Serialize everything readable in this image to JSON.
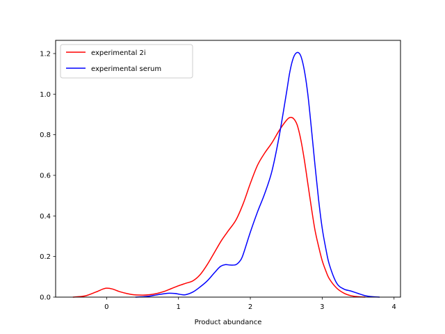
{
  "chart_data": {
    "type": "line",
    "xlabel": "Product abundance",
    "ylabel": "",
    "xlim": [
      -0.71,
      4.09
    ],
    "ylim": [
      0.0,
      1.265
    ],
    "x_ticks": [
      0,
      1,
      2,
      3,
      4
    ],
    "y_ticks": [
      0.0,
      0.2,
      0.4,
      0.6,
      0.8,
      1.0,
      1.2
    ],
    "x_tick_labels": [
      "0",
      "1",
      "2",
      "3",
      "4"
    ],
    "y_tick_labels": [
      "0.0",
      "0.2",
      "0.4",
      "0.6",
      "0.8",
      "1.0",
      "1.2"
    ],
    "grid": false,
    "legend_position": "top-left",
    "series": [
      {
        "name": "experimental 2i",
        "color": "#ff0000",
        "points": [
          [
            -0.47,
            0.0
          ],
          [
            -0.3,
            0.006
          ],
          [
            -0.15,
            0.025
          ],
          [
            -0.05,
            0.04
          ],
          [
            0.0,
            0.044
          ],
          [
            0.08,
            0.04
          ],
          [
            0.2,
            0.025
          ],
          [
            0.35,
            0.013
          ],
          [
            0.5,
            0.01
          ],
          [
            0.6,
            0.012
          ],
          [
            0.7,
            0.018
          ],
          [
            0.8,
            0.028
          ],
          [
            0.9,
            0.042
          ],
          [
            1.0,
            0.056
          ],
          [
            1.1,
            0.068
          ],
          [
            1.2,
            0.08
          ],
          [
            1.3,
            0.11
          ],
          [
            1.4,
            0.16
          ],
          [
            1.5,
            0.22
          ],
          [
            1.6,
            0.28
          ],
          [
            1.7,
            0.33
          ],
          [
            1.8,
            0.38
          ],
          [
            1.9,
            0.46
          ],
          [
            2.0,
            0.56
          ],
          [
            2.1,
            0.65
          ],
          [
            2.2,
            0.71
          ],
          [
            2.3,
            0.76
          ],
          [
            2.4,
            0.82
          ],
          [
            2.5,
            0.87
          ],
          [
            2.55,
            0.885
          ],
          [
            2.6,
            0.88
          ],
          [
            2.65,
            0.85
          ],
          [
            2.7,
            0.78
          ],
          [
            2.75,
            0.68
          ],
          [
            2.8,
            0.56
          ],
          [
            2.85,
            0.44
          ],
          [
            2.9,
            0.33
          ],
          [
            2.95,
            0.25
          ],
          [
            3.0,
            0.18
          ],
          [
            3.05,
            0.13
          ],
          [
            3.1,
            0.09
          ],
          [
            3.2,
            0.045
          ],
          [
            3.3,
            0.02
          ],
          [
            3.4,
            0.007
          ],
          [
            3.5,
            0.002
          ],
          [
            3.6,
            0.0
          ]
        ]
      },
      {
        "name": "experimental serum",
        "color": "#0000ff",
        "points": [
          [
            0.4,
            0.0
          ],
          [
            0.55,
            0.003
          ],
          [
            0.65,
            0.008
          ],
          [
            0.75,
            0.014
          ],
          [
            0.85,
            0.019
          ],
          [
            0.95,
            0.018
          ],
          [
            1.0,
            0.015
          ],
          [
            1.05,
            0.012
          ],
          [
            1.1,
            0.012
          ],
          [
            1.2,
            0.025
          ],
          [
            1.3,
            0.05
          ],
          [
            1.4,
            0.08
          ],
          [
            1.5,
            0.12
          ],
          [
            1.58,
            0.15
          ],
          [
            1.65,
            0.16
          ],
          [
            1.72,
            0.158
          ],
          [
            1.8,
            0.16
          ],
          [
            1.86,
            0.18
          ],
          [
            1.9,
            0.21
          ],
          [
            2.0,
            0.32
          ],
          [
            2.1,
            0.42
          ],
          [
            2.2,
            0.51
          ],
          [
            2.3,
            0.62
          ],
          [
            2.4,
            0.79
          ],
          [
            2.5,
            1.0
          ],
          [
            2.55,
            1.11
          ],
          [
            2.6,
            1.18
          ],
          [
            2.65,
            1.205
          ],
          [
            2.7,
            1.19
          ],
          [
            2.75,
            1.12
          ],
          [
            2.8,
            1.0
          ],
          [
            2.85,
            0.83
          ],
          [
            2.9,
            0.65
          ],
          [
            2.95,
            0.48
          ],
          [
            3.0,
            0.34
          ],
          [
            3.05,
            0.24
          ],
          [
            3.1,
            0.16
          ],
          [
            3.2,
            0.07
          ],
          [
            3.3,
            0.04
          ],
          [
            3.4,
            0.03
          ],
          [
            3.5,
            0.018
          ],
          [
            3.6,
            0.007
          ],
          [
            3.7,
            0.002
          ],
          [
            3.8,
            0.0
          ]
        ]
      }
    ]
  }
}
